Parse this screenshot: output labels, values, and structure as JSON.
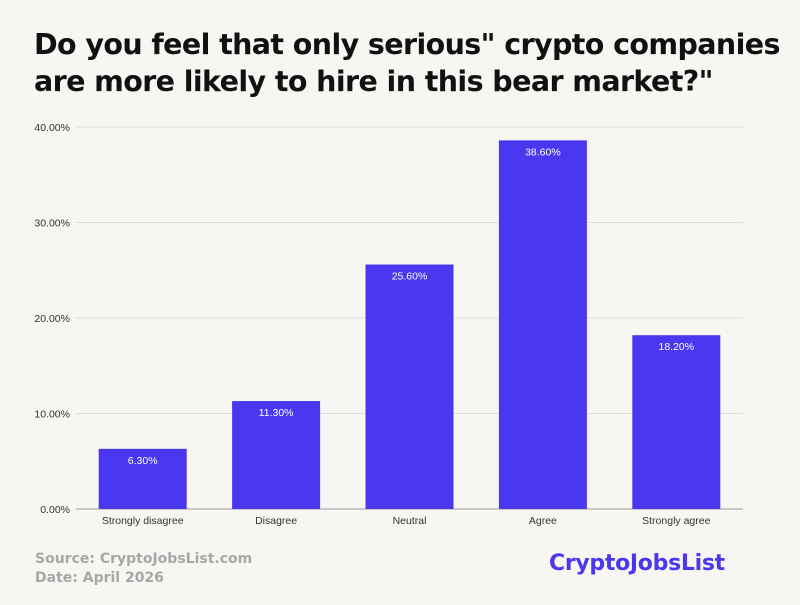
{
  "title": "Do you feel that only serious\" crypto companies are more likely to hire in this bear market?\"",
  "footer": {
    "source": "Source: CryptoJobsList.com",
    "date": "Date: April  2026"
  },
  "logo": {
    "text": "CryptoJobsList"
  },
  "colors": {
    "bar": "#4a38f1",
    "grid": "#dddddd",
    "background": "#f8f6f2"
  },
  "chart_data": {
    "type": "bar",
    "title": "Do you feel that only serious\" crypto companies are more likely to hire in this bear market?\"",
    "categories": [
      "Strongly disagree",
      "Disagree",
      "Neutral",
      "Agree",
      "Strongly agree"
    ],
    "values": [
      6.3,
      11.3,
      25.6,
      38.6,
      18.2
    ],
    "value_labels": [
      "6.30%",
      "11.30%",
      "25.60%",
      "38.60%",
      "18.20%"
    ],
    "ylim": [
      0,
      40
    ],
    "yticks": [
      0,
      10,
      20,
      30,
      40
    ],
    "ytick_labels": [
      "0.00%",
      "10.00%",
      "20.00%",
      "30.00%",
      "40.00%"
    ],
    "xlabel": "",
    "ylabel": "",
    "grid": true,
    "legend": "none"
  }
}
